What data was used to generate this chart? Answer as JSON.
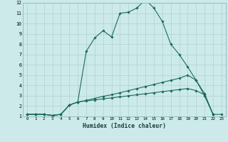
{
  "xlabel": "Humidex (Indice chaleur)",
  "ylabel": "",
  "xlim": [
    -0.5,
    23.5
  ],
  "ylim": [
    1,
    12
  ],
  "xticks": [
    0,
    1,
    2,
    3,
    4,
    5,
    6,
    7,
    8,
    9,
    10,
    11,
    12,
    13,
    14,
    15,
    16,
    17,
    18,
    19,
    20,
    21,
    22,
    23
  ],
  "yticks": [
    1,
    2,
    3,
    4,
    5,
    6,
    7,
    8,
    9,
    10,
    11,
    12
  ],
  "bg_color": "#cceaea",
  "grid_color": "#b0d0d0",
  "line_color": "#1a6b5a",
  "line1_x": [
    0,
    1,
    2,
    3,
    4,
    5,
    6,
    7,
    8,
    9,
    10,
    11,
    12,
    13,
    14,
    15,
    16,
    17,
    18,
    19,
    20,
    21,
    22
  ],
  "line1_y": [
    1.2,
    1.2,
    1.2,
    1.1,
    1.2,
    2.1,
    2.4,
    7.3,
    8.6,
    9.3,
    8.7,
    11.0,
    11.1,
    11.5,
    12.3,
    11.5,
    10.2,
    8.0,
    7.0,
    5.8,
    4.5,
    3.0,
    1.2
  ],
  "line2_x": [
    0,
    1,
    2,
    3,
    4,
    5,
    6,
    7,
    8,
    9,
    10,
    11,
    12,
    13,
    14,
    15,
    16,
    17,
    18,
    19,
    20,
    21,
    22
  ],
  "line2_y": [
    1.2,
    1.2,
    1.2,
    1.1,
    1.2,
    2.1,
    2.4,
    2.55,
    2.75,
    2.95,
    3.1,
    3.3,
    3.5,
    3.7,
    3.9,
    4.1,
    4.3,
    4.5,
    4.7,
    5.0,
    4.5,
    3.2,
    1.2
  ],
  "line3_x": [
    0,
    1,
    2,
    3,
    4,
    5,
    6,
    7,
    8,
    9,
    10,
    11,
    12,
    13,
    14,
    15,
    16,
    17,
    18,
    19,
    20,
    21,
    22,
    23
  ],
  "line3_y": [
    1.2,
    1.2,
    1.2,
    1.1,
    1.2,
    2.1,
    2.4,
    2.5,
    2.6,
    2.7,
    2.8,
    2.9,
    3.0,
    3.1,
    3.2,
    3.3,
    3.4,
    3.5,
    3.6,
    3.7,
    3.5,
    3.1,
    1.2,
    1.2
  ]
}
